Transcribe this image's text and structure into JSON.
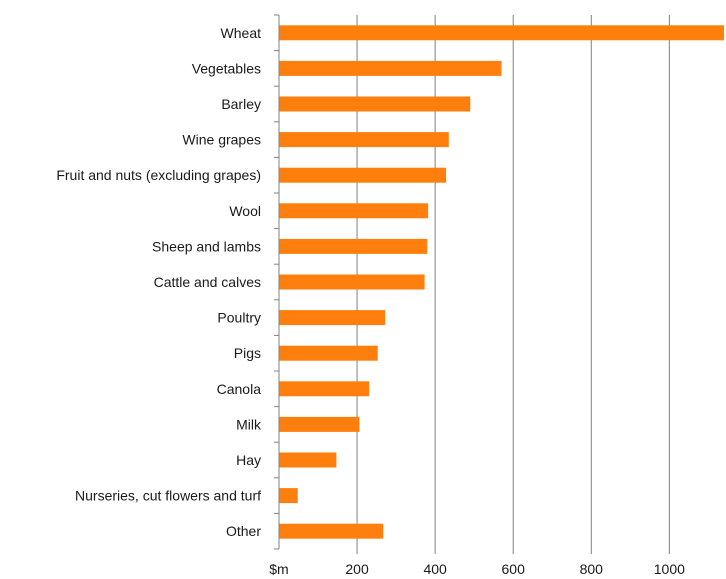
{
  "chart_data": {
    "type": "bar",
    "orientation": "horizontal",
    "title": "",
    "xlabel": "$m",
    "ylabel": "",
    "categories": [
      "Wheat",
      "Vegetables",
      "Barley",
      "Wine grapes",
      "Fruit and nuts (excluding grapes)",
      "Wool",
      "Sheep and lambs",
      "Cattle and calves",
      "Poultry",
      "Pigs",
      "Canola",
      "Milk",
      "Hay",
      "Nurseries, cut flowers and turf",
      "Other"
    ],
    "values": [
      1140,
      570,
      490,
      435,
      428,
      382,
      380,
      373,
      272,
      253,
      231,
      206,
      147,
      48,
      267
    ],
    "xlim": [
      0,
      1140
    ],
    "xticks": [
      0,
      200,
      400,
      600,
      800,
      1000
    ],
    "xtick_labels": [
      "$m",
      "200",
      "400",
      "600",
      "800",
      "1000"
    ],
    "bar_color": "#ff7f0e",
    "gridlines": "vertical",
    "grid_color": "#808080",
    "legend": "none"
  }
}
